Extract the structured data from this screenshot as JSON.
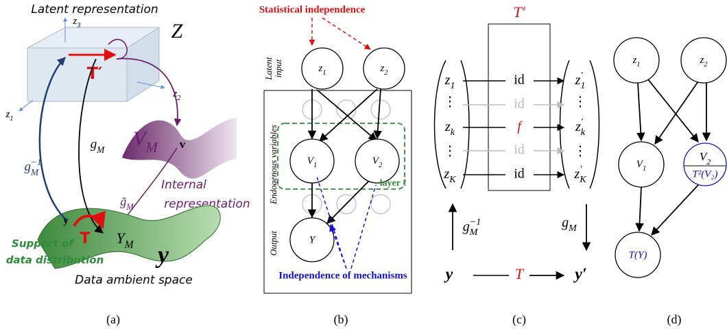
{
  "panel_a": {
    "title": "Latent representation",
    "latent_space": "Z",
    "axes": [
      {
        "t": "z",
        "sub": "3"
      },
      {
        "t": "z",
        "sub": "2"
      },
      {
        "t": "z",
        "sub": "1"
      }
    ],
    "latent_transform": "T′",
    "encoder": {
      "t": "g",
      "sup": "−1",
      "sub": "M"
    },
    "decoder": {
      "t": "g",
      "sub": "M"
    },
    "internal_manifold": {
      "t": "V",
      "sub": "M"
    },
    "internal_point": "v",
    "internal_map": {
      "t": "g̃",
      "sub": "M"
    },
    "internal_label": [
      "Internal",
      "representation"
    ],
    "data_point": "y",
    "data_transform": "T",
    "data_manifold": {
      "t": "Y",
      "sub": "M"
    },
    "support_label": [
      "Support of",
      "data distribution"
    ],
    "ambient_symbol": "y",
    "ambient_label": "Data ambient space",
    "caption": "(a)"
  },
  "panel_b": {
    "top_label": "Statistical independence",
    "latent_label": [
      "Latent",
      "input"
    ],
    "latent_nodes": [
      {
        "t": "z",
        "sub": "1"
      },
      {
        "t": "z",
        "sub": "2"
      }
    ],
    "endogenous_label": "Endogenous variables",
    "layer_nodes": [
      {
        "t": "V",
        "sub": "1"
      },
      {
        "t": "V",
        "sub": "2"
      }
    ],
    "layer_label": "layer ℓ",
    "output_label": "Output",
    "output_node": "Y",
    "bottom_label": "Independence of mechanisms",
    "caption": "(b)"
  },
  "panel_c": {
    "transform_label": "T′",
    "ellipsis": "⋮",
    "rows": [
      {
        "input": {
          "t": "z",
          "sub": "1"
        },
        "map": "id",
        "output": {
          "t": "z",
          "sup": "′",
          "sub": "1"
        }
      },
      {
        "map": "id"
      },
      {
        "input": {
          "t": "z",
          "sub": "k"
        },
        "map": "f",
        "output": {
          "t": "z",
          "sup": "′",
          "sub": "k"
        }
      },
      {
        "map": "id"
      },
      {
        "input": {
          "t": "z",
          "sub": "K"
        },
        "map": "id",
        "output": {
          "t": "z",
          "sup": "′",
          "sub": "K"
        }
      }
    ],
    "encoder": {
      "t": "g",
      "sup": "−1",
      "sub": "M"
    },
    "decoder": {
      "t": "g",
      "sub": "M"
    },
    "input": "y",
    "transform": "T",
    "output": "y′",
    "caption": "(c)"
  },
  "panel_d": {
    "latent_nodes": [
      {
        "t": "z",
        "sub": "1"
      },
      {
        "t": "z",
        "sub": "2"
      }
    ],
    "node": {
      "t": "V",
      "sub": "1"
    },
    "transformed_node": {
      "numerator": {
        "t": "V",
        "sub": "2"
      },
      "denominator": "T²(V₂)"
    },
    "output_node": "T(Y)",
    "caption": "(d)"
  }
}
